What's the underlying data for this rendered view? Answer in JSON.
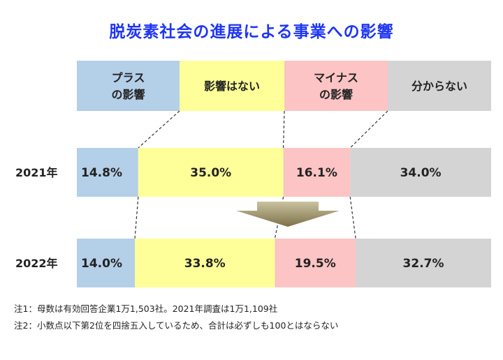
{
  "title": "脱炭素社会の進展による事業への影響",
  "notes": [
    "注1：母数は有効回答企業1万1,503社。2021年調査は1万1,109社",
    "注2：小数点以下第2位を四捨五入しているため、合計は必ずしも100とはならない"
  ],
  "colors": {
    "plus": "#b4cfe8",
    "none": "#ffff99",
    "minus": "#fcc4c4",
    "unknown": "#d4d4d4",
    "title": "#1e35f2"
  },
  "chart_data": {
    "type": "bar",
    "orientation": "horizontal-stacked-100",
    "title": "脱炭素社会の進展による事業への影響",
    "legend": {
      "placement": "top",
      "entries": [
        {
          "lines": [
            "プラス",
            "の影響"
          ],
          "color": "#b4cfe8"
        },
        {
          "lines": [
            "影響はない"
          ],
          "color": "#ffff99"
        },
        {
          "lines": [
            "マイナス",
            "の影響"
          ],
          "color": "#fcc4c4"
        },
        {
          "lines": [
            "分からない"
          ],
          "color": "#d4d4d4"
        }
      ]
    },
    "categories": [
      "2021年",
      "2022年"
    ],
    "series": [
      {
        "values": [
          14.8,
          14.0
        ],
        "labels": [
          "14.8%",
          "14.0%"
        ],
        "color": "#b4cfe8"
      },
      {
        "values": [
          35.0,
          33.8
        ],
        "labels": [
          "35.0%",
          "33.8%"
        ],
        "color": "#ffff99"
      },
      {
        "values": [
          16.1,
          19.5
        ],
        "labels": [
          "16.1%",
          "19.5%"
        ],
        "color": "#fcc4c4"
      },
      {
        "values": [
          34.0,
          32.7
        ],
        "labels": [
          "34.0%",
          "32.7%"
        ],
        "color": "#d4d4d4"
      }
    ]
  }
}
